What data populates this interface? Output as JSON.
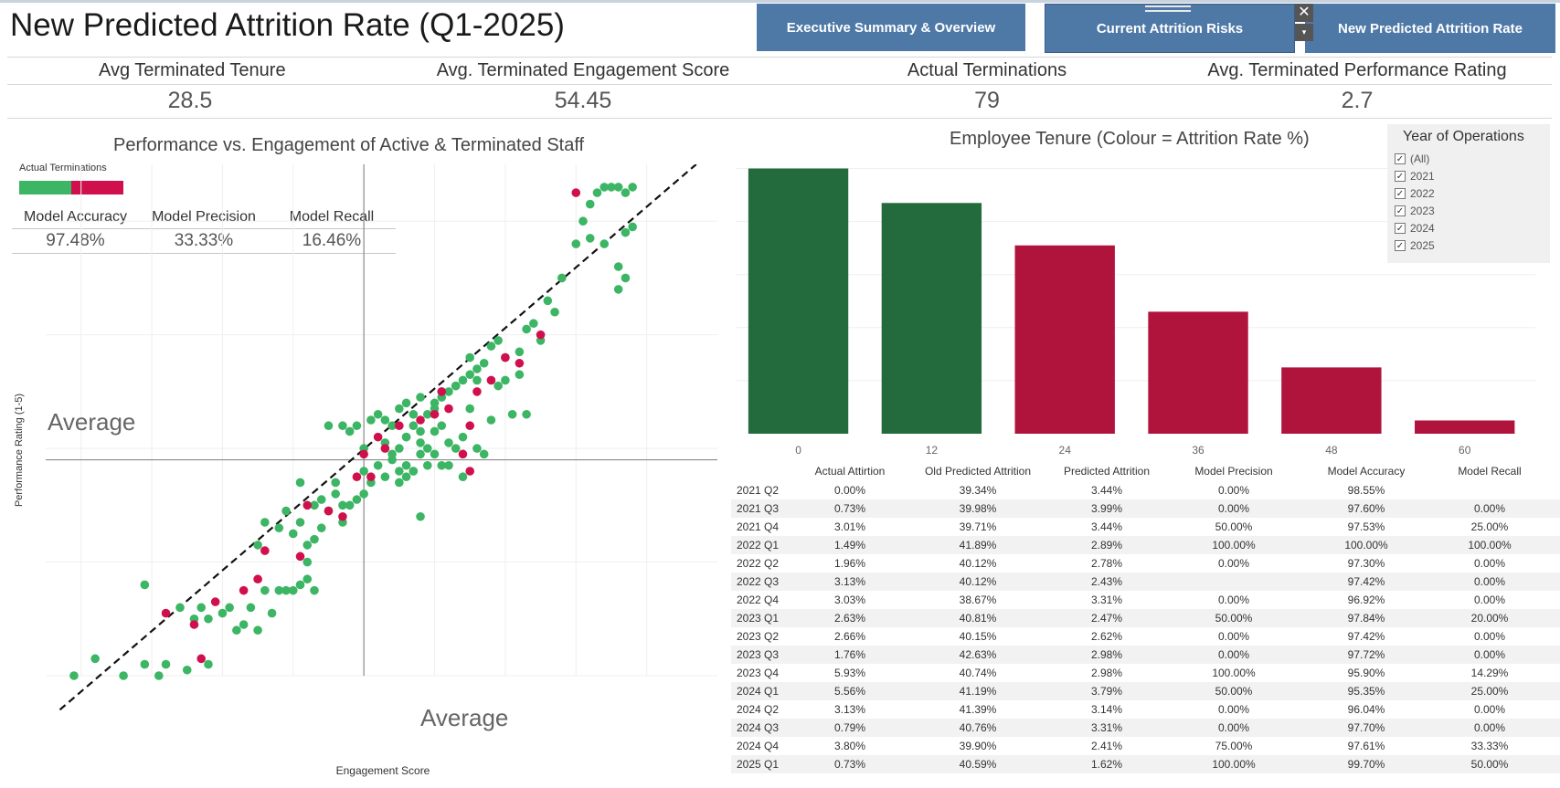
{
  "title": "New Predicted Attrition Rate (Q1-2025)",
  "nav": {
    "exec": "Executive Summary & Overview",
    "risk": "Current Attrition Risks",
    "new": "New Predicted Attrition Rate",
    "close_glyph": "✕",
    "dropdown_glyph": "▾"
  },
  "kpis": [
    {
      "label": "Avg Terminated Tenure",
      "value": "28.5"
    },
    {
      "label": "Avg. Terminated Engagement Score",
      "value": "54.45"
    },
    {
      "label": "Actual Terminations",
      "value": "79"
    },
    {
      "label": "Avg. Terminated Performance Rating",
      "value": "2.7"
    }
  ],
  "scatter": {
    "title": "Performance vs. Engagement of Active & Terminated Staff",
    "legend_title": "Actual Terminations",
    "x_label": "Engagement Score",
    "y_label": "Performance Rating (1-5)",
    "ref_label_h": "Average",
    "ref_label_v": "Average",
    "metrics": [
      {
        "label": "Model Accuracy",
        "value": "97.48%"
      },
      {
        "label": "Model Precision",
        "value": "33.33%"
      },
      {
        "label": "Model Recall",
        "value": "16.46%"
      }
    ]
  },
  "tenure": {
    "title": "Employee Tenure (Colour = Attrition Rate %)"
  },
  "filter": {
    "title": "Year of Operations",
    "items": [
      "(All)",
      "2021",
      "2022",
      "2023",
      "2024",
      "2025"
    ],
    "check_glyph": "✓"
  },
  "table": {
    "headers": [
      "Actual Attirtion",
      "Old Predicted Attrition",
      "Predicted Attrition",
      "Model Precision",
      "Model Accuracy",
      "Model Recall"
    ],
    "rows": [
      [
        "2021 Q2",
        "0.00%",
        "39.34%",
        "3.44%",
        "0.00%",
        "98.55%",
        ""
      ],
      [
        "2021 Q3",
        "0.73%",
        "39.98%",
        "3.99%",
        "0.00%",
        "97.60%",
        "0.00%"
      ],
      [
        "2021 Q4",
        "3.01%",
        "39.71%",
        "3.44%",
        "50.00%",
        "97.53%",
        "25.00%"
      ],
      [
        "2022 Q1",
        "1.49%",
        "41.89%",
        "2.89%",
        "100.00%",
        "100.00%",
        "100.00%"
      ],
      [
        "2022 Q2",
        "1.96%",
        "40.12%",
        "2.78%",
        "0.00%",
        "97.30%",
        "0.00%"
      ],
      [
        "2022 Q3",
        "3.13%",
        "40.12%",
        "2.43%",
        "",
        "97.42%",
        "0.00%"
      ],
      [
        "2022 Q4",
        "3.03%",
        "38.67%",
        "3.31%",
        "0.00%",
        "96.92%",
        "0.00%"
      ],
      [
        "2023 Q1",
        "2.63%",
        "40.81%",
        "2.47%",
        "50.00%",
        "97.84%",
        "20.00%"
      ],
      [
        "2023 Q2",
        "2.66%",
        "40.15%",
        "2.62%",
        "0.00%",
        "97.42%",
        "0.00%"
      ],
      [
        "2023 Q3",
        "1.76%",
        "42.63%",
        "2.98%",
        "0.00%",
        "97.72%",
        "0.00%"
      ],
      [
        "2023 Q4",
        "5.93%",
        "40.74%",
        "2.98%",
        "100.00%",
        "95.90%",
        "14.29%"
      ],
      [
        "2024 Q1",
        "5.56%",
        "41.19%",
        "3.79%",
        "50.00%",
        "95.35%",
        "25.00%"
      ],
      [
        "2024 Q2",
        "3.13%",
        "41.39%",
        "3.14%",
        "0.00%",
        "96.04%",
        "0.00%"
      ],
      [
        "2024 Q3",
        "0.79%",
        "40.76%",
        "3.31%",
        "0.00%",
        "97.70%",
        "0.00%"
      ],
      [
        "2024 Q4",
        "3.80%",
        "39.90%",
        "2.41%",
        "75.00%",
        "97.61%",
        "33.33%"
      ],
      [
        "2025 Q1",
        "0.73%",
        "40.59%",
        "1.62%",
        "100.00%",
        "99.70%",
        "50.00%"
      ]
    ]
  },
  "colors": {
    "active": "#3cb564",
    "terminated": "#d0104c",
    "bar_low": "#236b3d",
    "bar_high": "#b0143c",
    "nav": "#4e79a7"
  },
  "chart_data": [
    {
      "type": "scatter",
      "title": "Performance vs. Engagement of Active & Terminated Staff",
      "xlabel": "Engagement Score",
      "ylabel": "Performance Rating (1-5)",
      "reference_lines": {
        "x": 50.0,
        "y": 2.9,
        "label": "Average"
      },
      "grid": true,
      "legend": "top-left",
      "xlim": [
        5,
        100
      ],
      "ylim": [
        1.0,
        5.5
      ],
      "series": [
        {
          "name": "",
          "category": "active",
          "points": [
            [
              9,
              1.0
            ],
            [
              12,
              1.15
            ],
            [
              16,
              1.0
            ],
            [
              19,
              1.1
            ],
            [
              22,
              1.1
            ],
            [
              25,
              1.05
            ],
            [
              28,
              1.1
            ],
            [
              21,
              1.0
            ],
            [
              19,
              1.8
            ],
            [
              24,
              1.6
            ],
            [
              26,
              1.5
            ],
            [
              27,
              1.6
            ],
            [
              28,
              1.5
            ],
            [
              30,
              1.55
            ],
            [
              31,
              1.6
            ],
            [
              32,
              1.4
            ],
            [
              33,
              1.45
            ],
            [
              34,
              1.6
            ],
            [
              36,
              1.75
            ],
            [
              37,
              1.55
            ],
            [
              35,
              1.4
            ],
            [
              38,
              1.75
            ],
            [
              39,
              1.75
            ],
            [
              40,
              1.75
            ],
            [
              41,
              1.8
            ],
            [
              42,
              1.85
            ],
            [
              43,
              1.75
            ],
            [
              36,
              2.35
            ],
            [
              39,
              2.45
            ],
            [
              40,
              2.25
            ],
            [
              41,
              2.35
            ],
            [
              42,
              2.15
            ],
            [
              43,
              2.2
            ],
            [
              44,
              2.3
            ],
            [
              45,
              2.45
            ],
            [
              46,
              2.6
            ],
            [
              47,
              2.35
            ],
            [
              48,
              2.5
            ],
            [
              41,
              2.7
            ],
            [
              43,
              2.5
            ],
            [
              44,
              2.55
            ],
            [
              45,
              2.45
            ],
            [
              46,
              2.7
            ],
            [
              47,
              2.5
            ],
            [
              49,
              2.55
            ],
            [
              50,
              2.6
            ],
            [
              51,
              2.7
            ],
            [
              52,
              2.85
            ],
            [
              53,
              2.75
            ],
            [
              54,
              2.95
            ],
            [
              55,
              2.8
            ],
            [
              56,
              3.1
            ],
            [
              57,
              3.2
            ],
            [
              58,
              3.05
            ],
            [
              59,
              3.3
            ],
            [
              60,
              3.35
            ],
            [
              61,
              3.45
            ],
            [
              62,
              3.5
            ],
            [
              63,
              3.55
            ],
            [
              64,
              3.6
            ],
            [
              65,
              3.65
            ],
            [
              66,
              3.7
            ],
            [
              67,
              3.75
            ],
            [
              68,
              3.9
            ],
            [
              69,
              3.95
            ],
            [
              70,
              3.8
            ],
            [
              72,
              3.85
            ],
            [
              73,
              4.05
            ],
            [
              74,
              4.1
            ],
            [
              75,
              3.95
            ],
            [
              76,
              4.3
            ],
            [
              77,
              4.2
            ],
            [
              78,
              4.5
            ],
            [
              53,
              3.25
            ],
            [
              54,
              3.2
            ],
            [
              55,
              3.35
            ],
            [
              56,
              3.4
            ],
            [
              57,
              3.3
            ],
            [
              58,
              3.45
            ],
            [
              59,
              3.0
            ],
            [
              60,
              3.15
            ],
            [
              61,
              3.2
            ],
            [
              62,
              3.05
            ],
            [
              63,
              3.0
            ],
            [
              64,
              3.1
            ],
            [
              65,
              3.35
            ],
            [
              66,
              3.0
            ],
            [
              67,
              2.95
            ],
            [
              68,
              3.25
            ],
            [
              58,
              2.4
            ],
            [
              61,
              2.85
            ],
            [
              63,
              3.55
            ],
            [
              65,
              3.8
            ],
            [
              66,
              3.6
            ],
            [
              69,
              3.55
            ],
            [
              70,
              3.6
            ],
            [
              71,
              3.3
            ],
            [
              72,
              3.65
            ],
            [
              73,
              3.3
            ],
            [
              48,
              3.15
            ],
            [
              49,
              3.2
            ],
            [
              50,
              3.0
            ],
            [
              51,
              3.25
            ],
            [
              52,
              3.3
            ],
            [
              53,
              3.05
            ],
            [
              54,
              2.9
            ],
            [
              55,
              3.0
            ],
            [
              56,
              2.85
            ],
            [
              57,
              2.8
            ],
            [
              58,
              2.95
            ],
            [
              59,
              2.85
            ],
            [
              55,
              2.7
            ],
            [
              56,
              2.75
            ],
            [
              57,
              2.8
            ],
            [
              60,
              2.95
            ],
            [
              62,
              2.85
            ],
            [
              64,
              2.75
            ],
            [
              56,
              3.1
            ],
            [
              58,
              3.15
            ],
            [
              60,
              3.4
            ],
            [
              61,
              3.5
            ],
            [
              45,
              3.2
            ],
            [
              47,
              3.2
            ],
            [
              50,
              2.8
            ],
            [
              80,
              4.8
            ],
            [
              81,
              5.0
            ],
            [
              82,
              5.15
            ],
            [
              83,
              5.25
            ],
            [
              84,
              5.3
            ],
            [
              85,
              5.3
            ],
            [
              86,
              5.3
            ],
            [
              87,
              5.25
            ],
            [
              88,
              5.3
            ],
            [
              82,
              4.85
            ],
            [
              84,
              4.8
            ],
            [
              86,
              4.6
            ],
            [
              87,
              4.9
            ],
            [
              88,
              4.95
            ],
            [
              86,
              4.4
            ],
            [
              87,
              4.5
            ],
            [
              35,
              2.15
            ],
            [
              42,
              2.0
            ],
            [
              38,
              2.3
            ]
          ]
        },
        {
          "name": "",
          "category": "terminated",
          "points": [
            [
              27,
              1.15
            ],
            [
              22,
              1.55
            ],
            [
              26,
              1.45
            ],
            [
              29,
              1.65
            ],
            [
              33,
              1.75
            ],
            [
              35,
              1.85
            ],
            [
              36,
              2.1
            ],
            [
              41,
              2.05
            ],
            [
              42,
              2.5
            ],
            [
              45,
              2.45
            ],
            [
              47,
              2.4
            ],
            [
              49,
              2.75
            ],
            [
              50,
              2.95
            ],
            [
              51,
              2.75
            ],
            [
              52,
              3.1
            ],
            [
              53,
              3.0
            ],
            [
              55,
              3.2
            ],
            [
              58,
              3.25
            ],
            [
              60,
              3.3
            ],
            [
              62,
              3.35
            ],
            [
              64,
              2.95
            ],
            [
              65,
              3.2
            ],
            [
              66,
              3.5
            ],
            [
              68,
              3.6
            ],
            [
              70,
              3.8
            ],
            [
              72,
              3.75
            ],
            [
              75,
              4.0
            ],
            [
              80,
              5.25
            ],
            [
              65,
              2.8
            ],
            [
              61,
              3.5
            ]
          ]
        }
      ]
    },
    {
      "type": "bar",
      "title": "Employee Tenure (Colour = Attrition Rate %)",
      "categories": [
        "0",
        "12",
        "24",
        "36",
        "48",
        "60"
      ],
      "values": [
        100,
        87,
        71,
        46,
        25,
        5
      ],
      "ylim": [
        0,
        105
      ],
      "color_values": [
        "low",
        "low",
        "high",
        "high",
        "high",
        "high"
      ],
      "grid": true
    }
  ]
}
